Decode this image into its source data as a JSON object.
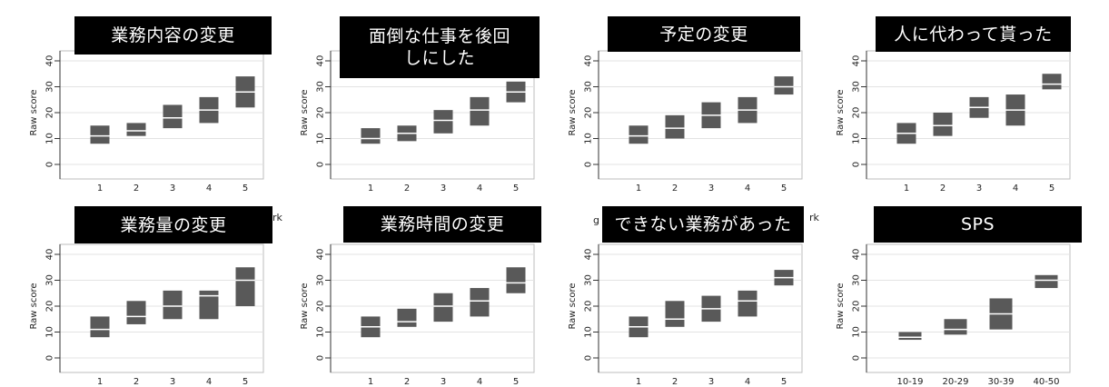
{
  "chart_data": [
    {
      "type": "box",
      "title": "業務内容の変更",
      "ylabel": "Raw score",
      "ylim": [
        0,
        40
      ],
      "yticks": [
        0,
        10,
        20,
        30,
        40
      ],
      "grid": true,
      "categories": [
        "1",
        "2",
        "3",
        "4",
        "5"
      ],
      "boxes": [
        {
          "q1": 8,
          "median": 11,
          "q3": 15
        },
        {
          "q1": 11,
          "median": 13,
          "q3": 16
        },
        {
          "q1": 14,
          "median": 18,
          "q3": 23
        },
        {
          "q1": 16,
          "median": 21,
          "q3": 26
        },
        {
          "q1": 22,
          "median": 28,
          "q3": 34
        }
      ]
    },
    {
      "type": "box",
      "title": "面倒な仕事を後回\nしにした",
      "ylabel": "Raw score",
      "ylim": [
        0,
        40
      ],
      "yticks": [
        0,
        10,
        20,
        30,
        40
      ],
      "grid": true,
      "categories": [
        "1",
        "2",
        "3",
        "4",
        "5"
      ],
      "boxes": [
        {
          "q1": 8,
          "median": 10,
          "q3": 14
        },
        {
          "q1": 9,
          "median": 12,
          "q3": 15
        },
        {
          "q1": 12,
          "median": 17,
          "q3": 21
        },
        {
          "q1": 15,
          "median": 21,
          "q3": 26
        },
        {
          "q1": 24,
          "median": 28,
          "q3": 32
        }
      ]
    },
    {
      "type": "box",
      "title": "予定の変更",
      "ylabel": "Raw score",
      "ylim": [
        0,
        40
      ],
      "yticks": [
        0,
        10,
        20,
        30,
        40
      ],
      "grid": true,
      "categories": [
        "1",
        "2",
        "3",
        "4",
        "5"
      ],
      "boxes": [
        {
          "q1": 8,
          "median": 11,
          "q3": 15
        },
        {
          "q1": 10,
          "median": 14,
          "q3": 19
        },
        {
          "q1": 14,
          "median": 19,
          "q3": 24
        },
        {
          "q1": 16,
          "median": 21,
          "q3": 26
        },
        {
          "q1": 27,
          "median": 30,
          "q3": 34
        }
      ]
    },
    {
      "type": "box",
      "title": "人に代わって貰った",
      "ylabel": "Raw score",
      "ylim": [
        0,
        40
      ],
      "yticks": [
        0,
        10,
        20,
        30,
        40
      ],
      "grid": true,
      "categories": [
        "1",
        "2",
        "3",
        "4",
        "5"
      ],
      "boxes": [
        {
          "q1": 8,
          "median": 12,
          "q3": 16
        },
        {
          "q1": 11,
          "median": 15,
          "q3": 20
        },
        {
          "q1": 18,
          "median": 22,
          "q3": 26
        },
        {
          "q1": 15,
          "median": 21,
          "q3": 27
        },
        {
          "q1": 29,
          "median": 31,
          "q3": 35
        }
      ]
    },
    {
      "type": "box",
      "title": "業務量の変更",
      "ylabel": "Raw score",
      "ylim": [
        0,
        40
      ],
      "yticks": [
        0,
        10,
        20,
        30,
        40
      ],
      "grid": true,
      "categories": [
        "1",
        "2",
        "3",
        "4",
        "5"
      ],
      "boxes": [
        {
          "q1": 8,
          "median": 11,
          "q3": 16
        },
        {
          "q1": 13,
          "median": 16,
          "q3": 22
        },
        {
          "q1": 15,
          "median": 20,
          "q3": 26
        },
        {
          "q1": 15,
          "median": 24,
          "q3": 26
        },
        {
          "q1": 20,
          "median": 30,
          "q3": 35
        }
      ]
    },
    {
      "type": "box",
      "title": "業務時間の変更",
      "ylabel": "Raw score",
      "ylim": [
        0,
        40
      ],
      "yticks": [
        0,
        10,
        20,
        30,
        40
      ],
      "grid": true,
      "categories": [
        "1",
        "2",
        "3",
        "4",
        "5"
      ],
      "boxes": [
        {
          "q1": 8,
          "median": 12,
          "q3": 16
        },
        {
          "q1": 12,
          "median": 14,
          "q3": 19
        },
        {
          "q1": 14,
          "median": 20,
          "q3": 25
        },
        {
          "q1": 16,
          "median": 22,
          "q3": 27
        },
        {
          "q1": 25,
          "median": 29,
          "q3": 35
        }
      ]
    },
    {
      "type": "box",
      "title": "できない業務があった",
      "ylabel": "Raw score",
      "ylim": [
        0,
        40
      ],
      "yticks": [
        0,
        10,
        20,
        30,
        40
      ],
      "grid": true,
      "categories": [
        "1",
        "2",
        "3",
        "4",
        "5"
      ],
      "boxes": [
        {
          "q1": 8,
          "median": 12,
          "q3": 16
        },
        {
          "q1": 12,
          "median": 15,
          "q3": 22
        },
        {
          "q1": 14,
          "median": 19,
          "q3": 24
        },
        {
          "q1": 16,
          "median": 22,
          "q3": 26
        },
        {
          "q1": 28,
          "median": 31,
          "q3": 34
        }
      ]
    },
    {
      "type": "box",
      "title": "SPS",
      "ylabel": "Raw score",
      "ylim": [
        0,
        40
      ],
      "yticks": [
        0,
        10,
        20,
        30,
        40
      ],
      "grid": true,
      "categories": [
        "10-19",
        "20-29",
        "30-39",
        "40-50"
      ],
      "boxes": [
        {
          "q1": 7,
          "median": 8,
          "q3": 10
        },
        {
          "q1": 9,
          "median": 11,
          "q3": 15
        },
        {
          "q1": 11,
          "median": 17,
          "q3": 23
        },
        {
          "q1": 27,
          "median": 30,
          "q3": 32
        }
      ]
    }
  ],
  "stray_fragments": [
    "rk",
    "g",
    "rk"
  ],
  "colors": {
    "box_fill": "#595959",
    "median_line": "#ffffff",
    "grid": "#e3e3e3",
    "title_bg": "#000000",
    "title_text": "#ffffff",
    "axis": "#333333"
  }
}
